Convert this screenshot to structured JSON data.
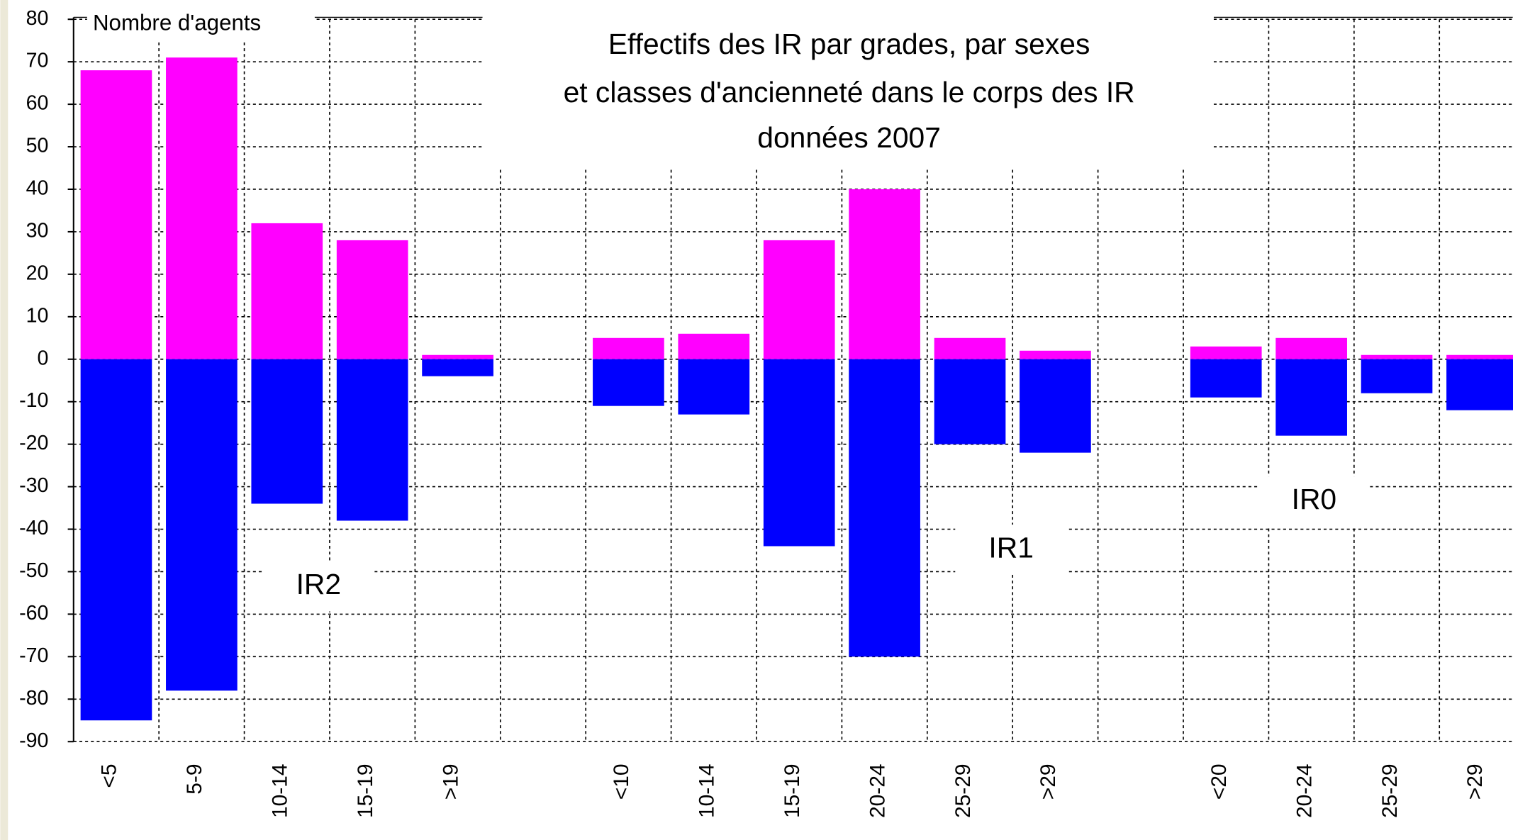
{
  "chart_data": {
    "type": "bar",
    "stacked": true,
    "title": [
      "Effectifs des IR par grades, par sexes",
      "et classes d'ancienneté dans le corps des IR",
      "données 2007"
    ],
    "y_label": "Nombre d'agents",
    "annotations": [
      "IR2",
      "IR1",
      "IR0"
    ],
    "categories": [
      "<5",
      "5-9",
      "10-14",
      "15-19",
      ">19",
      null,
      "<10",
      "10-14",
      "15-19",
      "20-24",
      "25-29",
      ">29",
      null,
      "<20",
      "20-24",
      "25-29",
      ">29"
    ],
    "series": [
      {
        "color": "#ff00ff",
        "values": [
          68,
          71,
          32,
          28,
          1,
          null,
          5,
          6,
          28,
          40,
          5,
          2,
          null,
          3,
          5,
          1,
          1
        ]
      },
      {
        "color": "#0000ff",
        "values": [
          -85,
          -78,
          -34,
          -38,
          -4,
          null,
          -11,
          -13,
          -44,
          -70,
          -20,
          -22,
          null,
          -9,
          -18,
          -8,
          -12
        ]
      }
    ],
    "ylim": [
      -90,
      80
    ],
    "yticks": [
      -90,
      -80,
      -70,
      -60,
      -50,
      -40,
      -30,
      -20,
      -10,
      0,
      10,
      20,
      30,
      40,
      50,
      60,
      70,
      80
    ],
    "grid": true
  }
}
